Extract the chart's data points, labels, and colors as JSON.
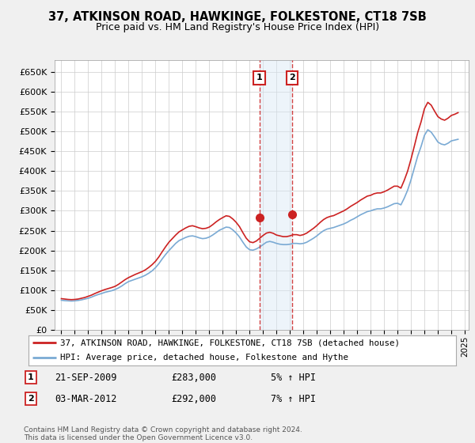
{
  "title": "37, ATKINSON ROAD, HAWKINGE, FOLKESTONE, CT18 7SB",
  "subtitle": "Price paid vs. HM Land Registry's House Price Index (HPI)",
  "title_fontsize": 10.5,
  "subtitle_fontsize": 9,
  "ylim": [
    0,
    680000
  ],
  "yticks": [
    0,
    50000,
    100000,
    150000,
    200000,
    250000,
    300000,
    350000,
    400000,
    450000,
    500000,
    550000,
    600000,
    650000
  ],
  "ytick_labels": [
    "£0",
    "£50K",
    "£100K",
    "£150K",
    "£200K",
    "£250K",
    "£300K",
    "£350K",
    "£400K",
    "£450K",
    "£500K",
    "£550K",
    "£600K",
    "£650K"
  ],
  "background_color": "#f0f0f0",
  "plot_bg_color": "#ffffff",
  "grid_color": "#cccccc",
  "hpi_color": "#7aaad4",
  "price_color": "#cc2222",
  "span_color": "#d8e8f5",
  "transaction1_date": 2009.72,
  "transaction1_price": 283000,
  "transaction2_date": 2012.17,
  "transaction2_price": 292000,
  "legend_line1": "37, ATKINSON ROAD, HAWKINGE, FOLKESTONE, CT18 7SB (detached house)",
  "legend_line2": "HPI: Average price, detached house, Folkestone and Hythe",
  "info1_label": "1",
  "info1_date": "21-SEP-2009",
  "info1_price": "£283,000",
  "info1_hpi": "5% ↑ HPI",
  "info2_label": "2",
  "info2_date": "03-MAR-2012",
  "info2_price": "£292,000",
  "info2_hpi": "7% ↑ HPI",
  "footnote": "Contains HM Land Registry data © Crown copyright and database right 2024.\nThis data is licensed under the Open Government Licence v3.0.",
  "xmin": 1994.5,
  "xmax": 2025.3,
  "hpi_data_x": [
    1995.0,
    1995.25,
    1995.5,
    1995.75,
    1996.0,
    1996.25,
    1996.5,
    1996.75,
    1997.0,
    1997.25,
    1997.5,
    1997.75,
    1998.0,
    1998.25,
    1998.5,
    1998.75,
    1999.0,
    1999.25,
    1999.5,
    1999.75,
    2000.0,
    2000.25,
    2000.5,
    2000.75,
    2001.0,
    2001.25,
    2001.5,
    2001.75,
    2002.0,
    2002.25,
    2002.5,
    2002.75,
    2003.0,
    2003.25,
    2003.5,
    2003.75,
    2004.0,
    2004.25,
    2004.5,
    2004.75,
    2005.0,
    2005.25,
    2005.5,
    2005.75,
    2006.0,
    2006.25,
    2006.5,
    2006.75,
    2007.0,
    2007.25,
    2007.5,
    2007.75,
    2008.0,
    2008.25,
    2008.5,
    2008.75,
    2009.0,
    2009.25,
    2009.5,
    2009.75,
    2010.0,
    2010.25,
    2010.5,
    2010.75,
    2011.0,
    2011.25,
    2011.5,
    2011.75,
    2012.0,
    2012.25,
    2012.5,
    2012.75,
    2013.0,
    2013.25,
    2013.5,
    2013.75,
    2014.0,
    2014.25,
    2014.5,
    2014.75,
    2015.0,
    2015.25,
    2015.5,
    2015.75,
    2016.0,
    2016.25,
    2016.5,
    2016.75,
    2017.0,
    2017.25,
    2017.5,
    2017.75,
    2018.0,
    2018.25,
    2018.5,
    2018.75,
    2019.0,
    2019.25,
    2019.5,
    2019.75,
    2020.0,
    2020.25,
    2020.5,
    2020.75,
    2021.0,
    2021.25,
    2021.5,
    2021.75,
    2022.0,
    2022.25,
    2022.5,
    2022.75,
    2023.0,
    2023.25,
    2023.5,
    2023.75,
    2024.0,
    2024.25,
    2024.5
  ],
  "hpi_data_y": [
    75000,
    74000,
    73500,
    73000,
    73500,
    74500,
    76000,
    78000,
    80000,
    83000,
    86500,
    89500,
    92000,
    95000,
    97000,
    99000,
    102000,
    106000,
    111000,
    117000,
    122000,
    125000,
    128000,
    131000,
    134000,
    138000,
    143000,
    149000,
    157000,
    167000,
    179000,
    190000,
    200000,
    209000,
    218000,
    225000,
    229000,
    233000,
    236000,
    237000,
    235000,
    232000,
    230000,
    231000,
    234000,
    239000,
    245000,
    251000,
    255000,
    259000,
    258000,
    252000,
    244000,
    234000,
    221000,
    209000,
    202000,
    201000,
    204000,
    209000,
    215000,
    221000,
    223000,
    221000,
    218000,
    216000,
    215000,
    215000,
    216000,
    218000,
    218000,
    217000,
    218000,
    221000,
    226000,
    231000,
    237000,
    244000,
    250000,
    254000,
    256000,
    258000,
    261000,
    264000,
    267000,
    271000,
    276000,
    280000,
    285000,
    290000,
    294000,
    298000,
    300000,
    303000,
    305000,
    305000,
    307000,
    310000,
    314000,
    318000,
    319000,
    315000,
    332000,
    352000,
    378000,
    408000,
    438000,
    462000,
    490000,
    504000,
    498000,
    486000,
    473000,
    468000,
    466000,
    470000,
    476000,
    478000,
    480000
  ],
  "price_data_x": [
    1995.0,
    1995.25,
    1995.5,
    1995.75,
    1996.0,
    1996.25,
    1996.5,
    1996.75,
    1997.0,
    1997.25,
    1997.5,
    1997.75,
    1998.0,
    1998.25,
    1998.5,
    1998.75,
    1999.0,
    1999.25,
    1999.5,
    1999.75,
    2000.0,
    2000.25,
    2000.5,
    2000.75,
    2001.0,
    2001.25,
    2001.5,
    2001.75,
    2002.0,
    2002.25,
    2002.5,
    2002.75,
    2003.0,
    2003.25,
    2003.5,
    2003.75,
    2004.0,
    2004.25,
    2004.5,
    2004.75,
    2005.0,
    2005.25,
    2005.5,
    2005.75,
    2006.0,
    2006.25,
    2006.5,
    2006.75,
    2007.0,
    2007.25,
    2007.5,
    2007.75,
    2008.0,
    2008.25,
    2008.5,
    2008.75,
    2009.0,
    2009.25,
    2009.5,
    2009.75,
    2010.0,
    2010.25,
    2010.5,
    2010.75,
    2011.0,
    2011.25,
    2011.5,
    2011.75,
    2012.0,
    2012.25,
    2012.5,
    2012.75,
    2013.0,
    2013.25,
    2013.5,
    2013.75,
    2014.0,
    2014.25,
    2014.5,
    2014.75,
    2015.0,
    2015.25,
    2015.5,
    2015.75,
    2016.0,
    2016.25,
    2016.5,
    2016.75,
    2017.0,
    2017.25,
    2017.5,
    2017.75,
    2018.0,
    2018.25,
    2018.5,
    2018.75,
    2019.0,
    2019.25,
    2019.5,
    2019.75,
    2020.0,
    2020.25,
    2020.5,
    2020.75,
    2021.0,
    2021.25,
    2021.5,
    2021.75,
    2022.0,
    2022.25,
    2022.5,
    2022.75,
    2023.0,
    2023.25,
    2023.5,
    2023.75,
    2024.0,
    2024.25,
    2024.5
  ],
  "price_data_y": [
    79000,
    78000,
    77000,
    76500,
    77000,
    78000,
    80000,
    82000,
    85000,
    88000,
    92000,
    95500,
    99000,
    102000,
    104500,
    107000,
    110000,
    115000,
    121000,
    127000,
    132000,
    136000,
    140000,
    143500,
    147000,
    151500,
    157500,
    164500,
    173000,
    184000,
    197000,
    209500,
    221000,
    230000,
    239000,
    247000,
    252000,
    257000,
    261000,
    262500,
    260000,
    257000,
    255000,
    256000,
    259000,
    265000,
    272000,
    278000,
    283000,
    287500,
    286000,
    279500,
    271000,
    260000,
    245000,
    231000,
    222000,
    220000,
    224000,
    231000,
    238000,
    244000,
    246000,
    243500,
    239000,
    237000,
    235000,
    235000,
    237000,
    240000,
    240000,
    238000,
    240000,
    244000,
    250000,
    256000,
    263000,
    271000,
    278000,
    283000,
    286000,
    288000,
    292000,
    296000,
    300000,
    305000,
    311000,
    316000,
    321000,
    327000,
    332000,
    337000,
    339000,
    343000,
    345000,
    345000,
    348000,
    352000,
    357000,
    362000,
    362000,
    357000,
    377000,
    400000,
    430000,
    463000,
    497000,
    524000,
    557000,
    573000,
    566000,
    551000,
    537000,
    531000,
    528000,
    533000,
    540000,
    543000,
    547000
  ]
}
